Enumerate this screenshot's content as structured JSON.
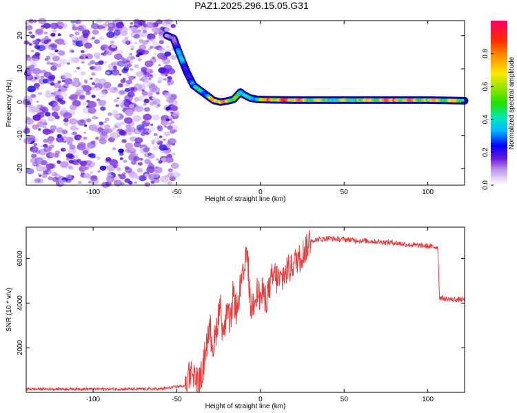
{
  "title": "PAZ1.2025.296.15.05.G31",
  "chart_data": [
    {
      "type": "heatmap",
      "xlabel": "Height of straight line (km)",
      "ylabel": "Frequency (Hz)",
      "xlim": [
        -140,
        122
      ],
      "ylim": [
        -25,
        24.5
      ],
      "xticks": [
        -100,
        -50,
        0,
        50,
        100
      ],
      "xtick_labels": [
        "-100",
        "-50",
        "0",
        "50",
        "100"
      ],
      "yticks": [
        -20,
        -10,
        0,
        10,
        20
      ],
      "ytick_labels": [
        "-20",
        "-10",
        "0",
        "10",
        "20"
      ],
      "colorbar": {
        "label": "Normalized spectral amplitude",
        "range": [
          0.0,
          1.0
        ],
        "ticks": [
          0.0,
          0.2,
          0.4,
          0.6,
          0.8
        ],
        "tick_labels": [
          "0.0",
          "0.2",
          "0.4",
          "0.6",
          "0.8"
        ]
      },
      "ridge": {
        "x": [
          -56,
          -52,
          -48,
          -44,
          -40,
          -36,
          -32,
          -28,
          -24,
          -20,
          -16,
          -12,
          -10,
          -6,
          -2,
          5,
          20,
          40,
          60,
          80,
          100,
          122
        ],
        "y": [
          20,
          19.2,
          14,
          9,
          5,
          3.5,
          2,
          0.5,
          0,
          0.3,
          0.8,
          3,
          2.2,
          1.2,
          0.8,
          0.7,
          0.6,
          0.6,
          0.6,
          0.6,
          0.6,
          0.4
        ],
        "amplitude": [
          0.1,
          0.15,
          0.4,
          0.3,
          0.35,
          0.5,
          0.4,
          0.9,
          0.95,
          0.8,
          0.7,
          0.4,
          0.5,
          0.4,
          0.5,
          0.95,
          0.9,
          0.6,
          0.7,
          0.9,
          0.8,
          0.7
        ]
      },
      "noise_region_x": [
        -140,
        -50
      ],
      "noise_amplitude_range": [
        0.0,
        0.15
      ]
    },
    {
      "type": "line",
      "xlabel": "Height of straight line (km)",
      "ylabel": "SNR (10 * v/v)",
      "xlim": [
        -140,
        122
      ],
      "ylim": [
        0,
        7400
      ],
      "xticks": [
        -100,
        -50,
        0,
        50,
        100
      ],
      "xtick_labels": [
        "-100",
        "-50",
        "0",
        "50",
        "100"
      ],
      "yticks": [
        2000,
        4000,
        6000
      ],
      "ytick_labels": [
        "2000",
        "4000",
        "6000"
      ],
      "series": [
        {
          "name": "SNR",
          "color": "#e83c3c",
          "x": [
            -140,
            -60,
            -45,
            -42,
            -40,
            -38,
            -36,
            -34,
            -32,
            -30,
            -28,
            -26,
            -24,
            -22,
            -20,
            -18,
            -16,
            -14,
            -12,
            -10,
            -8,
            -6,
            -4,
            -2,
            0,
            4,
            8,
            12,
            16,
            20,
            25,
            30,
            40,
            50,
            60,
            70,
            80,
            90,
            100,
            106,
            107,
            110,
            115,
            122
          ],
          "y": [
            150,
            150,
            300,
            1100,
            800,
            600,
            400,
            1200,
            2400,
            2800,
            2000,
            3000,
            4000,
            2500,
            3600,
            3000,
            4500,
            3500,
            4800,
            5200,
            6500,
            3800,
            4200,
            4600,
            4300,
            4400,
            5200,
            5000,
            5500,
            5800,
            6200,
            6800,
            6900,
            6850,
            6800,
            6750,
            6700,
            6600,
            6550,
            6500,
            4250,
            4200,
            4150,
            4150
          ]
        }
      ]
    }
  ]
}
